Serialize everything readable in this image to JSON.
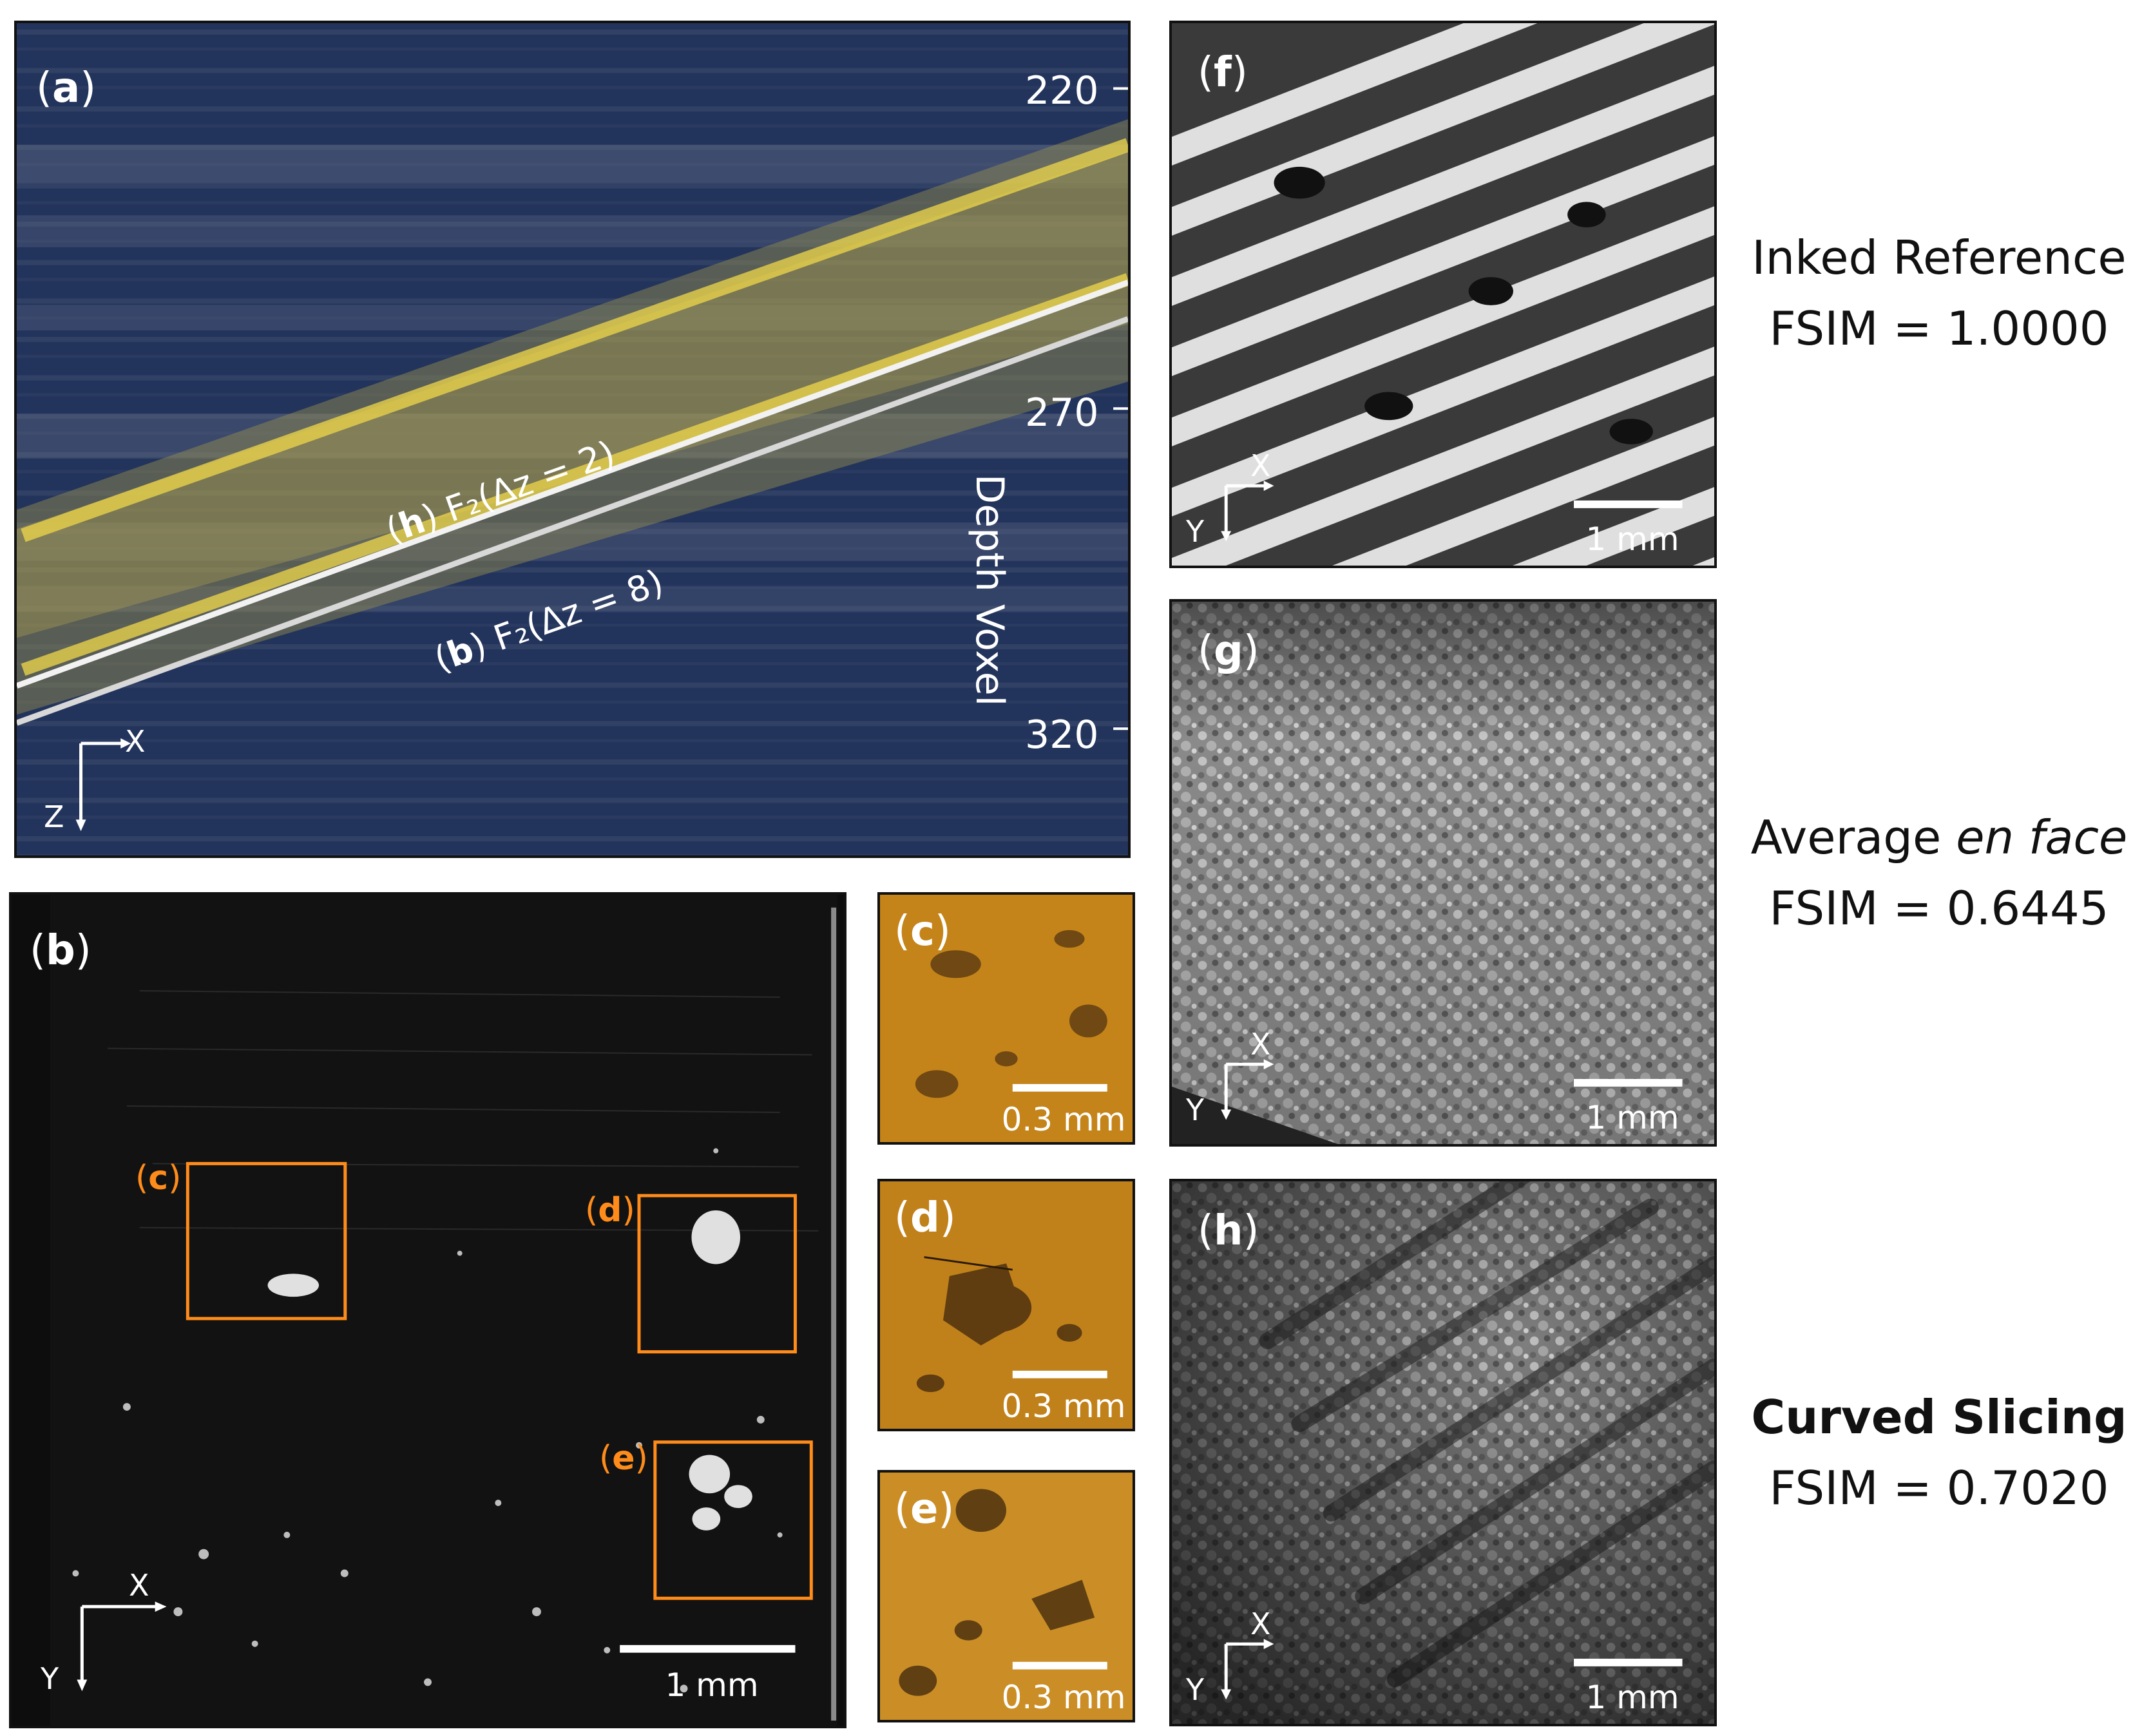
{
  "panel_a": {
    "label": "a",
    "depth_ticks": [
      "220",
      "270",
      "320"
    ],
    "axis_title": "Depth Voxel",
    "curve_h_label": {
      "panel": "h",
      "text": "F₂(Δz = 2)"
    },
    "curve_b_label": {
      "panel": "b",
      "text": "F₂(Δz = 8)"
    },
    "orient": {
      "h": "X",
      "v": "Z"
    }
  },
  "panel_b": {
    "label": "b",
    "boxes": [
      "c",
      "d",
      "e"
    ],
    "scale": "1 mm",
    "orient": {
      "h": "X",
      "v": "Y"
    }
  },
  "panel_c": {
    "label": "c",
    "scale": "0.3 mm"
  },
  "panel_d": {
    "label": "d",
    "scale": "0.3 mm"
  },
  "panel_e": {
    "label": "e",
    "scale": "0.3 mm"
  },
  "panel_f": {
    "label": "f",
    "scale": "1 mm",
    "orient": {
      "h": "X",
      "v": "Y"
    },
    "caption_title": "Inked Reference",
    "caption_fsim": "FSIM = 1.0000"
  },
  "panel_g": {
    "label": "g",
    "scale": "1 mm",
    "orient": {
      "h": "X",
      "v": "Y"
    },
    "caption_title_plain": "Average ",
    "caption_title_italic": "en face",
    "caption_fsim": "FSIM = 0.6445"
  },
  "panel_h": {
    "label": "h",
    "scale": "1 mm",
    "orient": {
      "h": "X",
      "v": "Y"
    },
    "caption_title": "Curved Slicing",
    "caption_fsim": "FSIM = 0.7020"
  },
  "colors": {
    "orange": "#ff8c1a",
    "navy": "#23345c",
    "yellow": "#e8d04a",
    "amber": "#b8760e"
  }
}
